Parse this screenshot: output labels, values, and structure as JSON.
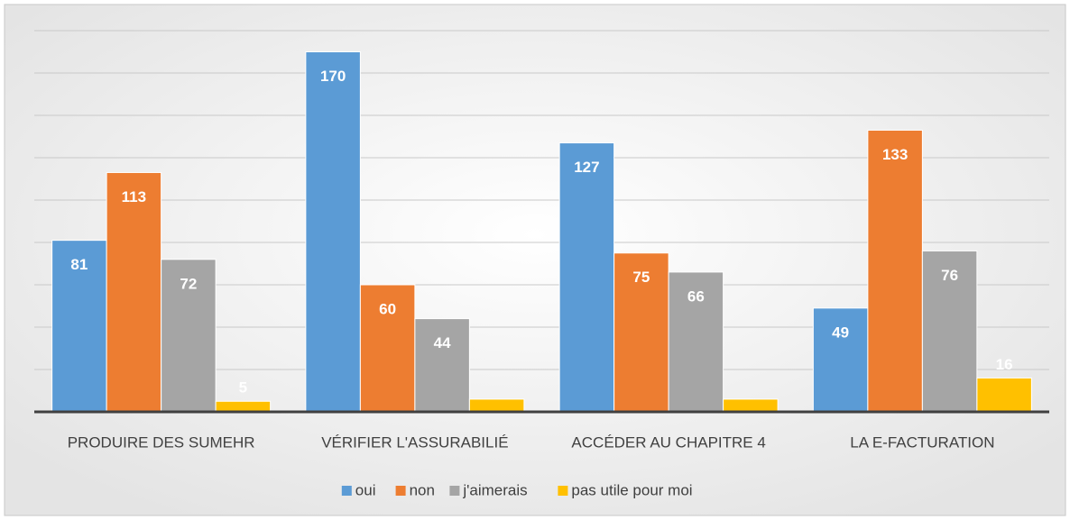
{
  "chart_data": {
    "type": "bar",
    "categories": [
      "PRODUIRE DES SUMEHR",
      "VÉRIFIER L'ASSURABILIÉ",
      "ACCÉDER AU CHAPITRE 4",
      "LA E-FACTURATION"
    ],
    "series": [
      {
        "name": "oui",
        "color": "#5b9bd5",
        "values": [
          81,
          170,
          127,
          49
        ]
      },
      {
        "name": "non",
        "color": "#ed7d31",
        "values": [
          113,
          60,
          75,
          133
        ]
      },
      {
        "name": "j'aimerais",
        "color": "#a5a5a5",
        "values": [
          72,
          44,
          66,
          76
        ]
      },
      {
        "name": "pas utile pour moi",
        "color": "#ffc000",
        "values": [
          5,
          6,
          6,
          16
        ],
        "value_labels": [
          "5",
          null,
          null,
          "16"
        ]
      }
    ],
    "ylim": [
      0,
      180
    ],
    "yticks": [
      0,
      20,
      40,
      60,
      80,
      100,
      120,
      140,
      160,
      180
    ],
    "grid": true,
    "legend": "bottom"
  }
}
